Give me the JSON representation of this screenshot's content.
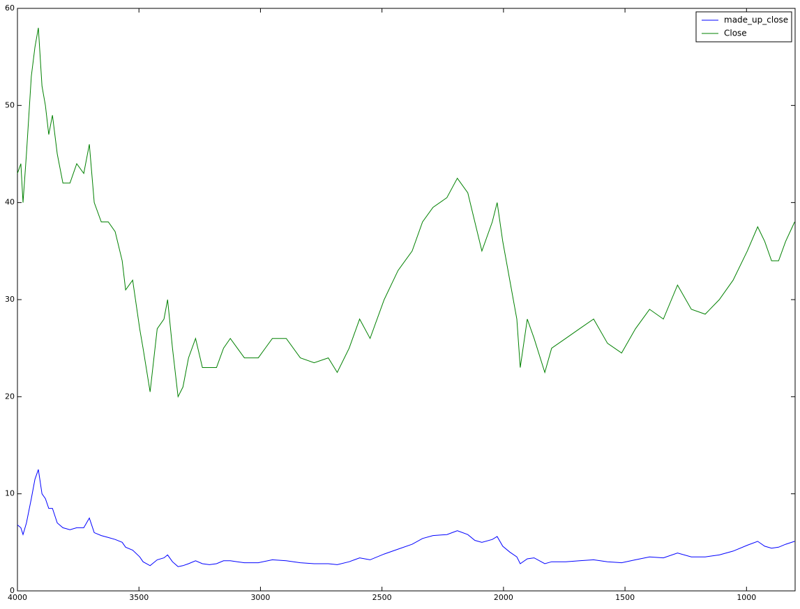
{
  "chart_data": {
    "type": "line",
    "x": [
      4000,
      3986,
      3977,
      3963,
      3943,
      3928,
      3914,
      3899,
      3885,
      3871,
      3856,
      3836,
      3813,
      3784,
      3756,
      3727,
      3704,
      3684,
      3655,
      3626,
      3598,
      3569,
      3555,
      3526,
      3497,
      3483,
      3454,
      3425,
      3397,
      3382,
      3362,
      3339,
      3319,
      3296,
      3267,
      3239,
      3210,
      3181,
      3152,
      3124,
      3095,
      3066,
      3009,
      2951,
      2894,
      2836,
      2779,
      2721,
      2684,
      2635,
      2592,
      2549,
      2491,
      2434,
      2376,
      2333,
      2290,
      2233,
      2190,
      2147,
      2118,
      2089,
      2046,
      2026,
      2003,
      1974,
      1945,
      1931,
      1902,
      1874,
      1830,
      1802,
      1744,
      1687,
      1629,
      1572,
      1514,
      1457,
      1399,
      1342,
      1284,
      1227,
      1170,
      1112,
      1055,
      997,
      954,
      925,
      897,
      868,
      839,
      802
    ],
    "series": [
      {
        "name": "made_up_close",
        "color": "#0000ff",
        "values": [
          6.8,
          6.5,
          5.8,
          7,
          9.5,
          11.5,
          12.5,
          10,
          9.5,
          8.5,
          8.5,
          7,
          6.5,
          6.3,
          6.5,
          6.5,
          7.5,
          6,
          5.7,
          5.5,
          5.3,
          5,
          4.5,
          4.2,
          3.5,
          3,
          2.6,
          3.2,
          3.4,
          3.7,
          3,
          2.5,
          2.6,
          2.8,
          3.1,
          2.8,
          2.7,
          2.8,
          3.1,
          3.1,
          3,
          2.9,
          2.9,
          3.2,
          3.1,
          2.9,
          2.8,
          2.8,
          2.7,
          3,
          3.4,
          3.2,
          3.8,
          4.3,
          4.8,
          5.4,
          5.7,
          5.8,
          6.2,
          5.8,
          5.2,
          5,
          5.3,
          5.6,
          4.6,
          4,
          3.5,
          2.8,
          3.3,
          3.4,
          2.8,
          3,
          3,
          3.1,
          3.2,
          3,
          2.9,
          3.2,
          3.5,
          3.4,
          3.9,
          3.5,
          3.5,
          3.7,
          4.1,
          4.7,
          5.1,
          4.6,
          4.4,
          4.5,
          4.8,
          5.1
        ]
      },
      {
        "name": "Close",
        "color": "#008000",
        "values": [
          43,
          44,
          40,
          45,
          53,
          56,
          58,
          52,
          50,
          47,
          49,
          45,
          42,
          42,
          44,
          43,
          46,
          40,
          38,
          38,
          37,
          34,
          31,
          32,
          27,
          25,
          20.5,
          27,
          28,
          30,
          25,
          20,
          21,
          24,
          26,
          23,
          23,
          23,
          25,
          26,
          25,
          24,
          24,
          26,
          26,
          24,
          23.5,
          24,
          22.5,
          25,
          28,
          26,
          30,
          33,
          35,
          38,
          39.5,
          40.5,
          42.5,
          41,
          38,
          35,
          38,
          40,
          36,
          32,
          28,
          23,
          28,
          26,
          22.5,
          25,
          26,
          27,
          28,
          25.5,
          24.5,
          27,
          29,
          28,
          31.5,
          29,
          28.5,
          30,
          32,
          35,
          37.5,
          36,
          34,
          34,
          36,
          38
        ]
      }
    ],
    "xlim": [
      4000,
      800
    ],
    "ylim": [
      0,
      60
    ],
    "xticks": [
      4000,
      3500,
      3000,
      2500,
      2000,
      1500,
      1000
    ],
    "yticks": [
      0,
      10,
      20,
      30,
      40,
      50,
      60
    ],
    "legend": "upper right"
  }
}
